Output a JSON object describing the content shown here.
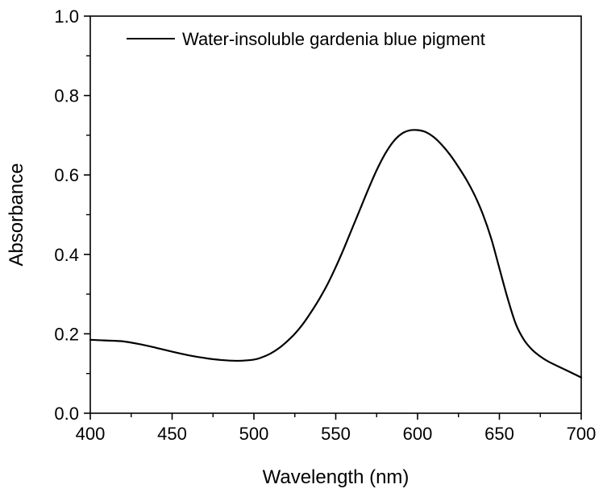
{
  "chart_data": {
    "type": "line",
    "title": "",
    "xlabel": "Wavelength (nm)",
    "ylabel": "Absorbance",
    "xlim": [
      400,
      700
    ],
    "ylim": [
      0.0,
      1.0
    ],
    "xticks": [
      400,
      450,
      500,
      550,
      600,
      650,
      700
    ],
    "xtick_labels": [
      "400",
      "450",
      "500",
      "550",
      "600",
      "650",
      "700"
    ],
    "yticks": [
      0.0,
      0.2,
      0.4,
      0.6,
      0.8,
      1.0
    ],
    "ytick_labels": [
      "0.0",
      "0.2",
      "0.4",
      "0.6",
      "0.8",
      "1.0"
    ],
    "grid": false,
    "legend_position": "top-right",
    "series": [
      {
        "name": "Water-insoluble gardenia blue pigment",
        "color": "#000000",
        "x": [
          400,
          410,
          420,
          430,
          440,
          450,
          460,
          470,
          480,
          490,
          500,
          505,
          510,
          515,
          520,
          525,
          530,
          535,
          540,
          545,
          550,
          555,
          560,
          565,
          570,
          575,
          580,
          585,
          590,
          595,
          600,
          605,
          610,
          615,
          620,
          625,
          630,
          635,
          640,
          645,
          650,
          655,
          660,
          665,
          670,
          675,
          680,
          690,
          700
        ],
        "y": [
          0.185,
          0.183,
          0.181,
          0.174,
          0.165,
          0.155,
          0.146,
          0.139,
          0.134,
          0.132,
          0.135,
          0.141,
          0.15,
          0.163,
          0.18,
          0.2,
          0.225,
          0.255,
          0.288,
          0.325,
          0.368,
          0.415,
          0.465,
          0.515,
          0.565,
          0.612,
          0.652,
          0.683,
          0.703,
          0.712,
          0.713,
          0.708,
          0.695,
          0.675,
          0.65,
          0.62,
          0.587,
          0.548,
          0.5,
          0.44,
          0.365,
          0.29,
          0.225,
          0.185,
          0.16,
          0.143,
          0.13,
          0.11,
          0.09
        ]
      }
    ]
  }
}
